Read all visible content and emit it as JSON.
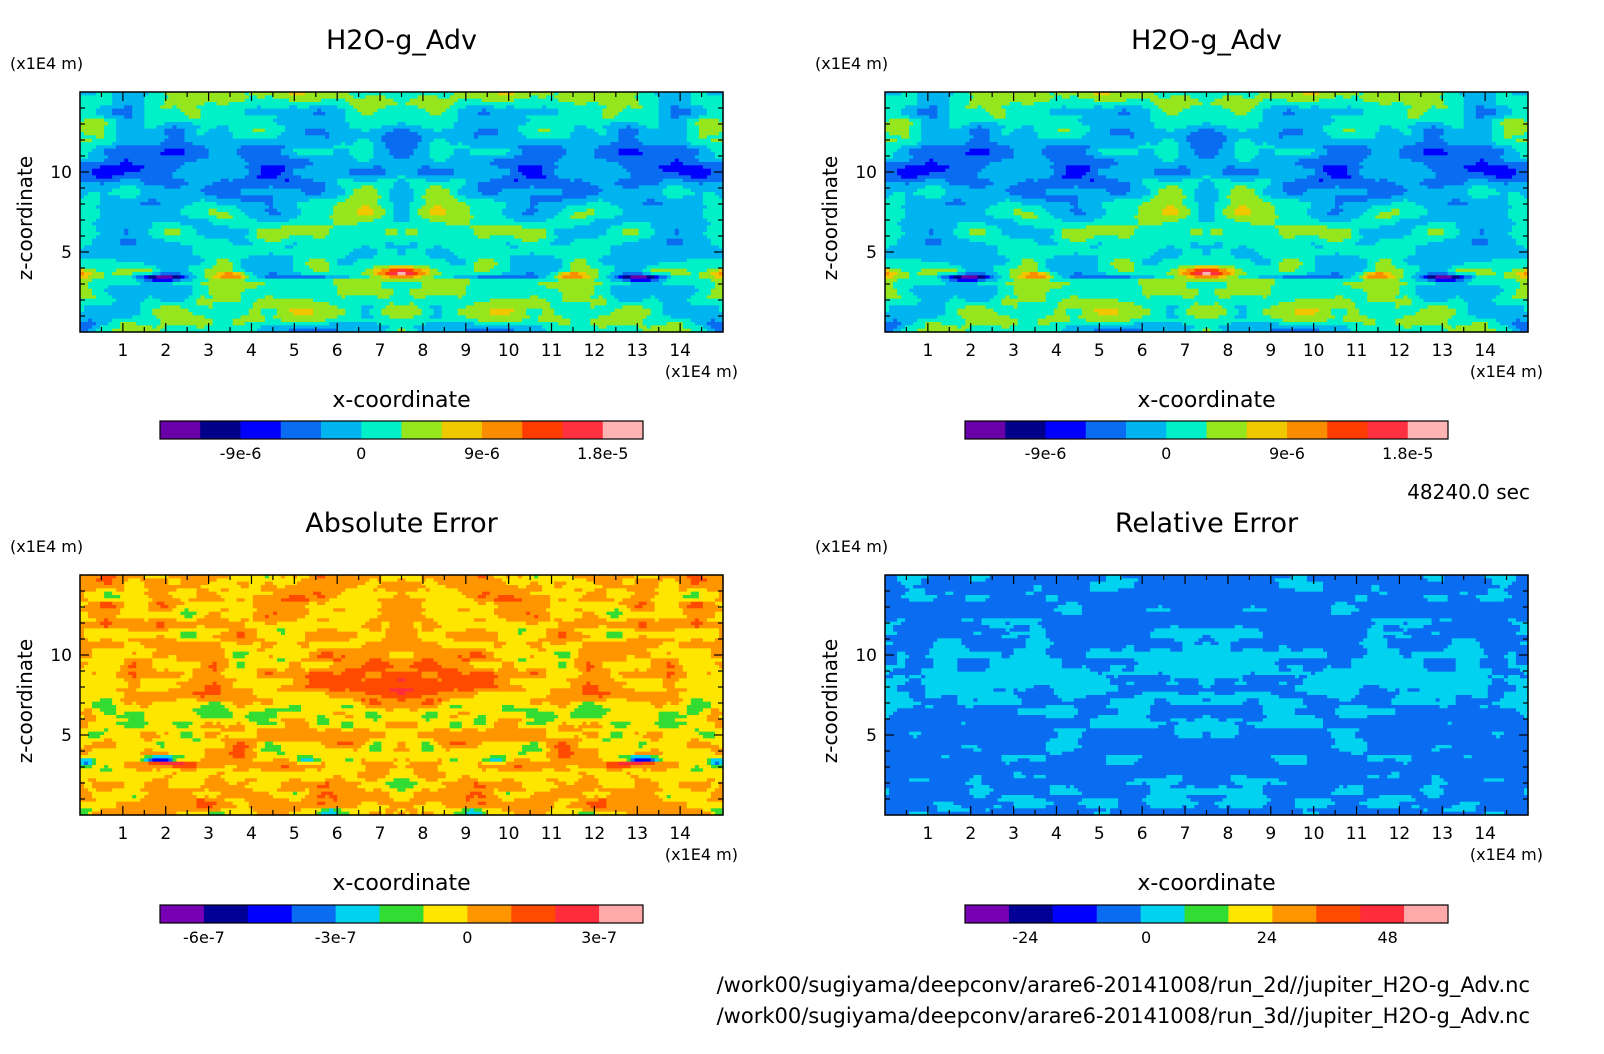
{
  "chart_data": [
    {
      "type": "heatmap",
      "title": "H2O-g_Adv",
      "xlabel": "x-coordinate",
      "ylabel": "z-coordinate",
      "x_unit": "(x1E4 m)",
      "y_unit": "(x1E4 m)",
      "xlim": [
        0,
        15
      ],
      "ylim": [
        0,
        15
      ],
      "x_ticks": [
        1,
        2,
        3,
        4,
        5,
        6,
        7,
        8,
        9,
        10,
        11,
        12,
        13,
        14
      ],
      "y_ticks": [
        5,
        10
      ],
      "colorbar": {
        "colors": [
          "#6a00a8",
          "#00008b",
          "#0000ff",
          "#0a6cf0",
          "#00b4f0",
          "#00f0c8",
          "#96e61e",
          "#f0c800",
          "#fa8c00",
          "#ff3c00",
          "#ff3040",
          "#ffb4b4"
        ],
        "tick_values": [
          -9e-06,
          0,
          9e-06,
          1.8e-05
        ],
        "tick_labels": [
          "-9e-6",
          "0",
          "9e-6",
          "1.8e-5"
        ],
        "range": [
          -1.5e-05,
          2.1e-05
        ]
      },
      "field": "advection"
    },
    {
      "type": "heatmap",
      "title": "H2O-g_Adv",
      "xlabel": "x-coordinate",
      "ylabel": "z-coordinate",
      "x_unit": "(x1E4 m)",
      "y_unit": "(x1E4 m)",
      "xlim": [
        0,
        15
      ],
      "ylim": [
        0,
        15
      ],
      "x_ticks": [
        1,
        2,
        3,
        4,
        5,
        6,
        7,
        8,
        9,
        10,
        11,
        12,
        13,
        14
      ],
      "y_ticks": [
        5,
        10
      ],
      "colorbar": {
        "colors": [
          "#6a00a8",
          "#00008b",
          "#0000ff",
          "#0a6cf0",
          "#00b4f0",
          "#00f0c8",
          "#96e61e",
          "#f0c800",
          "#fa8c00",
          "#ff3c00",
          "#ff3040",
          "#ffb4b4"
        ],
        "tick_values": [
          -9e-06,
          0,
          9e-06,
          1.8e-05
        ],
        "tick_labels": [
          "-9e-6",
          "0",
          "9e-6",
          "1.8e-5"
        ],
        "range": [
          -1.5e-05,
          2.1e-05
        ]
      },
      "field": "advection"
    },
    {
      "type": "heatmap",
      "title": "Absolute Error",
      "xlabel": "x-coordinate",
      "ylabel": "z-coordinate",
      "x_unit": "(x1E4 m)",
      "y_unit": "(x1E4 m)",
      "xlim": [
        0,
        15
      ],
      "ylim": [
        0,
        15
      ],
      "x_ticks": [
        1,
        2,
        3,
        4,
        5,
        6,
        7,
        8,
        9,
        10,
        11,
        12,
        13,
        14
      ],
      "y_ticks": [
        5,
        10
      ],
      "colorbar": {
        "colors": [
          "#7800b4",
          "#000096",
          "#0000ff",
          "#0a6cf0",
          "#00d2f0",
          "#32dc32",
          "#ffe600",
          "#ff9600",
          "#ff4b00",
          "#ff2d3c",
          "#ffaaaa"
        ],
        "tick_values": [
          -6e-07,
          -3e-07,
          0,
          3e-07
        ],
        "tick_labels": [
          "-6e-7",
          "-3e-7",
          "0",
          "3e-7"
        ],
        "range": [
          -7e-07,
          4e-07
        ]
      },
      "field": "abserr"
    },
    {
      "type": "heatmap",
      "title": "Relative Error",
      "xlabel": "x-coordinate",
      "ylabel": "z-coordinate",
      "x_unit": "(x1E4 m)",
      "y_unit": "(x1E4 m)",
      "xlim": [
        0,
        15
      ],
      "ylim": [
        0,
        15
      ],
      "x_ticks": [
        1,
        2,
        3,
        4,
        5,
        6,
        7,
        8,
        9,
        10,
        11,
        12,
        13,
        14
      ],
      "y_ticks": [
        5,
        10
      ],
      "colorbar": {
        "colors": [
          "#7800b4",
          "#000096",
          "#0000ff",
          "#0a6cf0",
          "#00d2f0",
          "#32dc32",
          "#ffe600",
          "#ff9600",
          "#ff4b00",
          "#ff2d3c",
          "#ffaaaa"
        ],
        "tick_values": [
          -24,
          0,
          24,
          48
        ],
        "tick_labels": [
          "-24",
          "0",
          "24",
          "48"
        ],
        "range": [
          -36,
          60
        ]
      },
      "field": "relerr"
    }
  ],
  "time_label": "48240.0 sec",
  "file_paths": [
    "/work00/sugiyama/deepconv/arare6-20141008/run_2d//jupiter_H2O-g_Adv.nc",
    "/work00/sugiyama/deepconv/arare6-20141008/run_3d//jupiter_H2O-g_Adv.nc"
  ]
}
